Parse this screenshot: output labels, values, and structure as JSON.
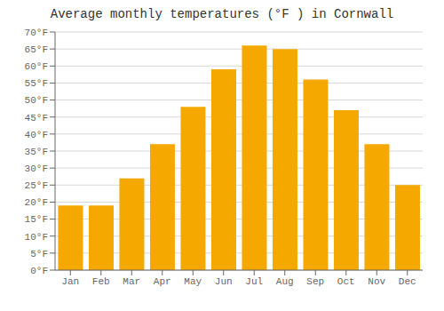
{
  "chart_data": {
    "type": "bar",
    "title": "Average monthly temperatures (°F ) in Cornwall",
    "categories": [
      "Jan",
      "Feb",
      "Mar",
      "Apr",
      "May",
      "Jun",
      "Jul",
      "Aug",
      "Sep",
      "Oct",
      "Nov",
      "Dec"
    ],
    "values": [
      19,
      19,
      27,
      37,
      48,
      59,
      66,
      65,
      56,
      47,
      37,
      25
    ],
    "color": "#F5A800",
    "ylim": [
      0,
      70
    ],
    "yticks": [
      {
        "value": 0,
        "label": "0°F"
      },
      {
        "value": 5,
        "label": "5°F"
      },
      {
        "value": 10,
        "label": "10°F"
      },
      {
        "value": 15,
        "label": "15°F"
      },
      {
        "value": 20,
        "label": "20°F"
      },
      {
        "value": 25,
        "label": "25°F"
      },
      {
        "value": 30,
        "label": "30°F"
      },
      {
        "value": 35,
        "label": "35°F"
      },
      {
        "value": 40,
        "label": "40°F"
      },
      {
        "value": 45,
        "label": "45°F"
      },
      {
        "value": 50,
        "label": "50°F"
      },
      {
        "value": 55,
        "label": "55°F"
      },
      {
        "value": 60,
        "label": "60°F"
      },
      {
        "value": 65,
        "label": "65°F"
      },
      {
        "value": 70,
        "label": "70°F"
      }
    ],
    "grid": true
  }
}
